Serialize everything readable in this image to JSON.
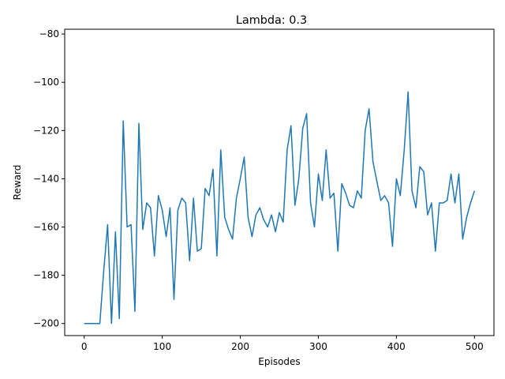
{
  "chart_data": {
    "type": "line",
    "title": "Lambda: 0.3",
    "xlabel": "Episodes",
    "ylabel": "Reward",
    "xlim": [
      -25,
      525
    ],
    "ylim": [
      -205,
      -78
    ],
    "x_ticks": [
      0,
      100,
      200,
      300,
      400,
      500
    ],
    "y_ticks": [
      -200,
      -180,
      -160,
      -140,
      -120,
      -100,
      -80
    ],
    "grid": false,
    "series_color": "#1f77b4",
    "series": [
      {
        "x_start": 0,
        "x_step": 5,
        "values": [
          -200,
          -200,
          -200,
          -200,
          -200,
          -178,
          -159,
          -200,
          -162,
          -198,
          -116,
          -160,
          -159,
          -195,
          -117,
          -161,
          -150,
          -152,
          -172,
          -147,
          -153,
          -164,
          -152,
          -190,
          -153,
          -148,
          -150,
          -174,
          -148,
          -170,
          -169,
          -144,
          -147,
          -136,
          -172,
          -128,
          -156,
          -161,
          -165,
          -148,
          -140,
          -131,
          -156,
          -164,
          -155,
          -152,
          -157,
          -160,
          -155,
          -162,
          -154,
          -158,
          -128,
          -118,
          -151,
          -140,
          -119,
          -113,
          -150,
          -160,
          -138,
          -149,
          -128,
          -148,
          -146,
          -170,
          -142,
          -146,
          -151,
          -152,
          -145,
          -148,
          -120,
          -111,
          -133,
          -141,
          -149,
          -147,
          -150,
          -168,
          -140,
          -147,
          -128,
          -104,
          -145,
          -152,
          -135,
          -137,
          -155,
          -150,
          -170,
          -150,
          -150,
          -149,
          -138,
          -150,
          -138,
          -165,
          -156,
          -150,
          -145
        ]
      }
    ]
  }
}
